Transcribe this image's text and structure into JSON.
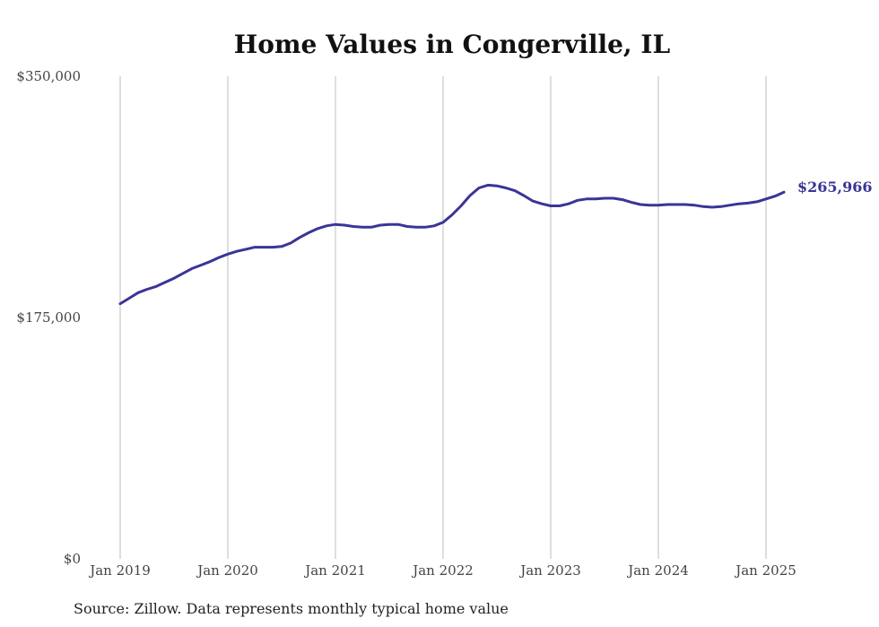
{
  "chart_data": {
    "type": "line",
    "title": "Home Values in Congerville, IL",
    "xlabel": "",
    "ylabel": "",
    "ylim": [
      0,
      350000
    ],
    "yticks": [
      "$0",
      "$175,000",
      "$350,000"
    ],
    "ytick_values": [
      0,
      175000,
      350000
    ],
    "xticks": [
      "Jan 2019",
      "Jan 2020",
      "Jan 2021",
      "Jan 2022",
      "Jan 2023",
      "Jan 2024",
      "Jan 2025"
    ],
    "grid": "vertical",
    "line_color": "#3a3596",
    "end_label": "$265,966",
    "source": "Source: Zillow. Data represents monthly typical home value",
    "series": [
      {
        "x": [
          "2019-01",
          "2019-02",
          "2019-03",
          "2019-04",
          "2019-05",
          "2019-06",
          "2019-07",
          "2019-08",
          "2019-09",
          "2019-10",
          "2019-11",
          "2019-12",
          "2020-01",
          "2020-02",
          "2020-03",
          "2020-04",
          "2020-05",
          "2020-06",
          "2020-07",
          "2020-08",
          "2020-09",
          "2020-10",
          "2020-11",
          "2020-12",
          "2021-01",
          "2021-02",
          "2021-03",
          "2021-04",
          "2021-05",
          "2021-06",
          "2021-07",
          "2021-08",
          "2021-09",
          "2021-10",
          "2021-11",
          "2021-12",
          "2022-01",
          "2022-02",
          "2022-03",
          "2022-04",
          "2022-05",
          "2022-06",
          "2022-07",
          "2022-08",
          "2022-09",
          "2022-10",
          "2022-11",
          "2022-12",
          "2023-01",
          "2023-02",
          "2023-03",
          "2023-04",
          "2023-05",
          "2023-06",
          "2023-07",
          "2023-08",
          "2023-09",
          "2023-10",
          "2023-11",
          "2023-12",
          "2024-01",
          "2024-02",
          "2024-03",
          "2024-04",
          "2024-05",
          "2024-06",
          "2024-07",
          "2024-08",
          "2024-09",
          "2024-10",
          "2024-11",
          "2024-12",
          "2025-01",
          "2025-02",
          "2025-03"
        ],
        "values": [
          185000,
          189000,
          193000,
          195500,
          197500,
          200500,
          203500,
          207000,
          210500,
          213000,
          215500,
          218500,
          221000,
          223000,
          224500,
          226000,
          226000,
          226000,
          226500,
          229000,
          233000,
          236500,
          239500,
          241500,
          242500,
          242000,
          241000,
          240500,
          240500,
          242000,
          242500,
          242500,
          241000,
          240500,
          240500,
          241500,
          244000,
          249500,
          256000,
          263500,
          269000,
          271000,
          270500,
          269000,
          267000,
          263500,
          259500,
          257500,
          256000,
          256000,
          257500,
          260000,
          261000,
          261000,
          261500,
          261500,
          260500,
          258500,
          257000,
          256500,
          256500,
          257000,
          257000,
          257000,
          256500,
          255500,
          255000,
          255500,
          256500,
          257500,
          258000,
          259000,
          261000,
          263000,
          265966
        ]
      }
    ]
  }
}
